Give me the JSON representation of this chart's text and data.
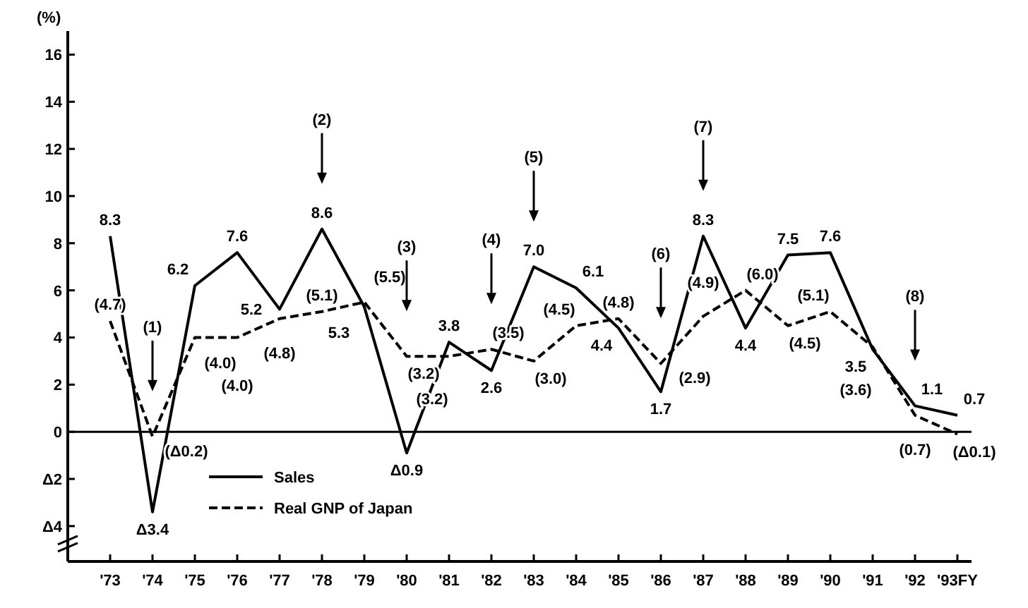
{
  "chart_data": {
    "type": "line",
    "ylabel": "(%)",
    "categories": [
      "'73",
      "'74",
      "'75",
      "'76",
      "'77",
      "'78",
      "'79",
      "'80",
      "'81",
      "'82",
      "'83",
      "'84",
      "'85",
      "'86",
      "'87",
      "'88",
      "'89",
      "'90",
      "'91",
      "'92",
      "'93FY"
    ],
    "series": [
      {
        "name": "Sales",
        "color": "#000000",
        "line_style": "solid",
        "values": [
          8.3,
          -3.4,
          6.2,
          7.6,
          5.2,
          8.6,
          5.3,
          -0.9,
          3.8,
          2.6,
          7.0,
          6.1,
          4.4,
          1.7,
          8.3,
          4.4,
          7.5,
          7.6,
          3.5,
          1.1,
          0.7
        ],
        "value_labels": [
          "8.3",
          "Δ3.4",
          "6.2",
          "7.6",
          "5.2",
          "8.6",
          "5.3",
          "Δ0.9",
          "3.8",
          "2.6",
          "7.0",
          "6.1",
          "4.4",
          "1.7",
          "8.3",
          "4.4",
          "7.5",
          "7.6",
          "3.5",
          "1.1",
          "0.7"
        ]
      },
      {
        "name": "Real GNP of Japan",
        "color": "#000000",
        "line_style": "dashed",
        "values": [
          4.7,
          -0.2,
          4.0,
          4.0,
          4.8,
          5.1,
          5.5,
          3.2,
          3.2,
          3.5,
          3.0,
          4.5,
          4.8,
          2.9,
          4.9,
          6.0,
          4.5,
          5.1,
          3.6,
          0.7,
          -0.1
        ],
        "value_labels": [
          "(4.7)",
          "(Δ0.2)",
          "(4.0)",
          "(4.0)",
          "(4.8)",
          "(5.1)",
          "(5.5)",
          "(3.2)",
          "(3.2)",
          "(3.5)",
          "(3.0)",
          "(4.5)",
          "(4.8)",
          "(2.9)",
          "(4.9)",
          "(6.0)",
          "(4.5)",
          "(5.1)",
          "(3.6)",
          "(0.7)",
          "(Δ0.1)"
        ]
      }
    ],
    "ylim": [
      -5.5,
      17
    ],
    "yticks": [
      {
        "value": -4,
        "label": "Δ4"
      },
      {
        "value": -2,
        "label": "Δ2"
      },
      0,
      2,
      4,
      6,
      8,
      10,
      12,
      14,
      16
    ],
    "ref_lines": [
      {
        "axis": "y",
        "value": 0
      }
    ],
    "annotations": [
      {
        "text": "(1)",
        "x": "'74"
      },
      {
        "text": "(2)",
        "x": "'78"
      },
      {
        "text": "(3)",
        "x": "'80"
      },
      {
        "text": "(4)",
        "x": "'82"
      },
      {
        "text": "(5)",
        "x": "'83"
      },
      {
        "text": "(6)",
        "x": "'86"
      },
      {
        "text": "(7)",
        "x": "'87"
      },
      {
        "text": "(8)",
        "x": "'92"
      }
    ],
    "legend": "bottom left",
    "marker": "none",
    "grid": false
  }
}
